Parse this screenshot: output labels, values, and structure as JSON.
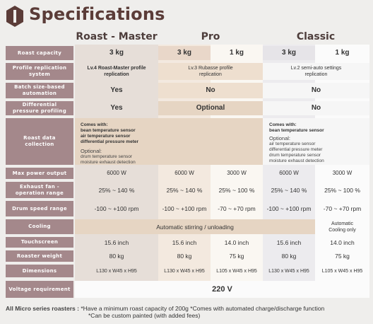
{
  "header": {
    "title": "Specifications"
  },
  "models": {
    "roast_master": "Roast - Master",
    "pro": "Pro",
    "classic": "Classic"
  },
  "colors": {
    "label_bg": "#a4888b",
    "rm_col": "#e6ded8",
    "pro_a": "#e9d7c9",
    "pro_b": "#faf7f2",
    "classic_a": "#e6e4e8",
    "classic_b": "#fbfbfb",
    "shared_tan": "#e6d5c3",
    "shared_grey": "#f6f6f6"
  },
  "rows": {
    "capacity": {
      "label": "Roast capacity",
      "rm": "3 kg",
      "pro_a": "3 kg",
      "pro_b": "1 kg",
      "cl_a": "3 kg",
      "cl_b": "1 kg"
    },
    "profile": {
      "label": "Profile replication system",
      "rm": "Lv.4 Roast-Master profile replication",
      "pro": "Lv.3 Rubasse profile replication",
      "classic": "Lv.2 semi-auto settings replication"
    },
    "batch": {
      "label": "Batch size-based automation",
      "rm": "Yes",
      "pro": "No",
      "classic": "No"
    },
    "diff": {
      "label": "Differential pressure profiling",
      "rm": "Yes",
      "pro": "Optional",
      "classic": "No"
    },
    "rdc": {
      "label": "Roast data collection",
      "rm_comes": "Comes with:",
      "rm_items": [
        "bean temperature sensor",
        "air temperature sensor",
        "differential pressure meter"
      ],
      "rm_opt": "Optional:",
      "rm_opt_items": [
        "drum temperature sensor",
        "moisture exhaust detection"
      ],
      "cl_comes": "Comes with:",
      "cl_items": [
        "bean temperature sensor"
      ],
      "cl_opt": "Optional:",
      "cl_opt_items": [
        "air temperature sensor",
        "differential pressure meter",
        "drum temperature sensor",
        "moisture exhaust detection"
      ]
    },
    "power": {
      "label": "Max power output",
      "rm": "6000 W",
      "pro_a": "6000 W",
      "pro_b": "3000 W",
      "cl_a": "6000 W",
      "cl_b": "3000 W"
    },
    "fan": {
      "label": "Exhaust fan - operation range",
      "rm": "25% ~ 140 %",
      "pro_a": "25% ~ 140 %",
      "pro_b": "25% ~ 100 %",
      "cl_a": "25% ~ 140 %",
      "cl_b": "25% ~ 100 %"
    },
    "drum": {
      "label": "Drum speed range",
      "rm": "-100 ~ +100 rpm",
      "pro_a": "-100 ~ +100 rpm",
      "pro_b": "-70 ~ +70 rpm",
      "cl_a": "-100 ~ +100 rpm",
      "cl_b": "-70 ~ +70 rpm"
    },
    "cooling": {
      "label": "Cooling",
      "shared": "Automatic stirring / unloading",
      "classic_b": "Automatic Cooling only"
    },
    "touch": {
      "label": "Touchscreen",
      "rm": "15.6 inch",
      "pro_a": "15.6 inch",
      "pro_b": "14.0 inch",
      "cl_a": "15.6 inch",
      "cl_b": "14.0 inch"
    },
    "weight": {
      "label": "Roaster weight",
      "rm": "80 kg",
      "pro_a": "80 kg",
      "pro_b": "75 kg",
      "cl_a": "80 kg",
      "cl_b": "75 kg"
    },
    "dims": {
      "label": "Dimensions",
      "rm": "L130 x W45 x H95",
      "pro_a": "L130 x W45 x H95",
      "pro_b": "L105 x W45 x H95",
      "cl_a": "L130 x W45 x H95",
      "cl_b": "L105 x W45 x H95"
    },
    "voltage": {
      "label": "Voltage requirement",
      "value": "220 V"
    }
  },
  "footer": {
    "label": "All Micro series roasters :",
    "note1": "*Have a minimum roast capacity of 200g",
    "note2": "*Comes with automated charge/discharge function",
    "note3": "*Can be custom painted (with added fees)"
  }
}
